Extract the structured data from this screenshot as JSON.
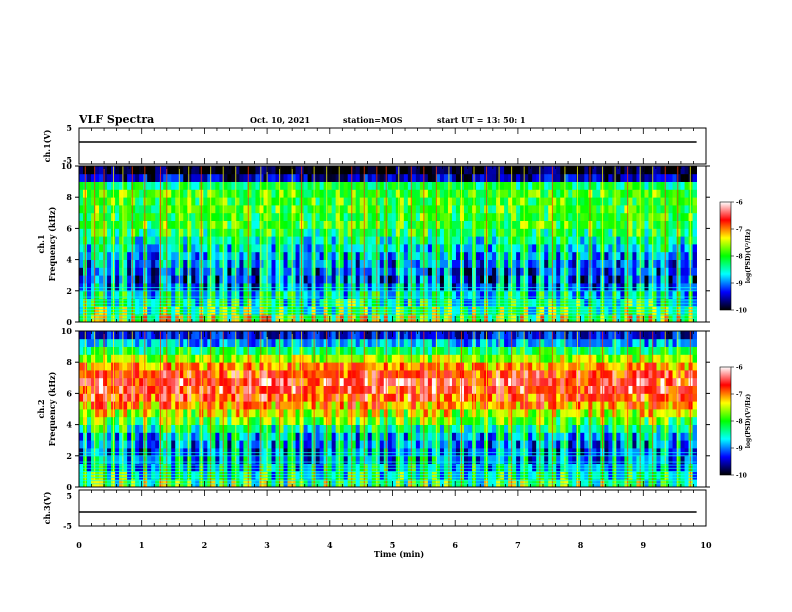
{
  "header": {
    "title": "VLF Spectra",
    "date": "Oct. 10, 2021",
    "station": "station=MOS",
    "start": "start  UT  =   13: 50: 1"
  },
  "chart_data": {
    "type": "heatmap",
    "title": "VLF Spectra",
    "x": {
      "label": "Time (min)",
      "range": [
        0,
        10
      ],
      "ticks": [
        "0",
        "1",
        "2",
        "3",
        "4",
        "5",
        "6",
        "7",
        "8",
        "9",
        "10"
      ]
    },
    "panels": [
      {
        "id": "ch1-waveform",
        "type": "line",
        "ylabel": "ch.1(V)",
        "ylim": [
          -5,
          5
        ],
        "yticks": [
          "5",
          "-5"
        ],
        "level": 0
      },
      {
        "id": "ch1-spectrogram",
        "type": "heatmap",
        "ylabel": "ch.1\nFrequency (kHz)",
        "ylabel_line1": "ch.1",
        "ylabel_line2": "Frequency (kHz)",
        "ylim": [
          0,
          10
        ],
        "yticks": [
          "0",
          "2",
          "4",
          "6",
          "8",
          "10"
        ],
        "data_end_min": 9.85,
        "profile_kHz": [
          0.25,
          0.75,
          1.25,
          1.75,
          2.25,
          2.75,
          3.25,
          3.75,
          4.25,
          4.75,
          5.25,
          5.75,
          6.25,
          6.75,
          7.25,
          7.75,
          8.25,
          8.75,
          9.25,
          9.75
        ],
        "profile_log_psd": [
          -8.3,
          -8.6,
          -8.8,
          -9.0,
          -9.4,
          -9.6,
          -9.5,
          -9.3,
          -9.1,
          -8.9,
          -8.7,
          -8.4,
          -8.2,
          -8.2,
          -8.1,
          -8.1,
          -8.0,
          -8.3,
          -9.6,
          -10.0
        ]
      },
      {
        "id": "ch2-spectrogram",
        "type": "heatmap",
        "ylabel": "ch.2\nFrequency (kHz)",
        "ylabel_line1": "ch.2",
        "ylabel_line2": "Frequency (kHz)",
        "ylim": [
          0,
          10
        ],
        "yticks": [
          "0",
          "2",
          "4",
          "6",
          "8",
          "10"
        ],
        "data_end_min": 9.85,
        "profile_kHz": [
          0.25,
          0.75,
          1.25,
          1.75,
          2.25,
          2.75,
          3.25,
          3.75,
          4.25,
          4.75,
          5.25,
          5.75,
          6.25,
          6.75,
          7.25,
          7.75,
          8.25,
          8.75,
          9.25,
          9.75
        ],
        "profile_log_psd": [
          -8.6,
          -8.9,
          -9.1,
          -9.3,
          -9.4,
          -9.3,
          -9.1,
          -8.7,
          -8.2,
          -7.8,
          -7.3,
          -7.0,
          -6.8,
          -6.7,
          -6.9,
          -7.2,
          -7.7,
          -8.3,
          -8.9,
          -9.4
        ]
      },
      {
        "id": "ch3-waveform",
        "type": "line",
        "ylabel": "ch.3(V)",
        "ylim": [
          -5,
          5
        ],
        "yticks": [
          "5",
          "-5"
        ],
        "level": 0
      }
    ],
    "hum_lines_kHz": [
      0.2,
      0.4,
      0.6,
      0.8,
      1.0,
      1.2,
      1.4,
      1.6,
      2.0,
      2.2
    ],
    "impulses_min": [
      0.1,
      0.25,
      0.4,
      0.55,
      0.7,
      0.85,
      1.05,
      1.3,
      1.4,
      1.6,
      1.75,
      1.95,
      2.1,
      2.3,
      2.5,
      2.7,
      2.9,
      3.0,
      3.2,
      3.4,
      3.55,
      3.75,
      3.95,
      4.15,
      4.35,
      4.55,
      4.75,
      4.9,
      5.1,
      5.3,
      5.5,
      5.7,
      5.9,
      6.1,
      6.3,
      6.5,
      6.7,
      6.9,
      7.1,
      7.35,
      7.55,
      7.75,
      7.95,
      8.15,
      8.35,
      8.55,
      8.75,
      8.95,
      9.15,
      9.35,
      9.55,
      9.75
    ],
    "colorbar": {
      "label": "log(PSD)(V²/Hz)",
      "range": [
        -10,
        -6
      ],
      "ticks": [
        "-6",
        "-7",
        "-8",
        "-9",
        "-10"
      ],
      "colormap": [
        "#000000",
        "#0000ff",
        "#00ffff",
        "#00ff00",
        "#ffff00",
        "#ff0000",
        "#ffffff"
      ]
    }
  }
}
